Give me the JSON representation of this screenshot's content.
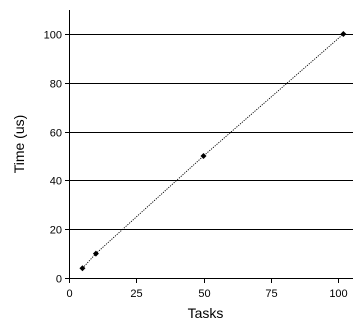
{
  "chart_data": {
    "type": "line",
    "title": "",
    "xlabel": "Tasks",
    "ylabel": "Time (us)",
    "xlim": [
      0,
      105
    ],
    "ylim": [
      0,
      110
    ],
    "x_ticks": [
      0,
      25,
      50,
      75,
      100
    ],
    "y_ticks": [
      0,
      20,
      40,
      60,
      80,
      100
    ],
    "grid": "horizontal",
    "legend": "none",
    "series": [
      {
        "x": [
          5,
          10,
          50,
          102
        ],
        "y": [
          4,
          10,
          50,
          100
        ],
        "line_style": "dotted",
        "marker": "diamond",
        "color": "#000000"
      }
    ]
  }
}
